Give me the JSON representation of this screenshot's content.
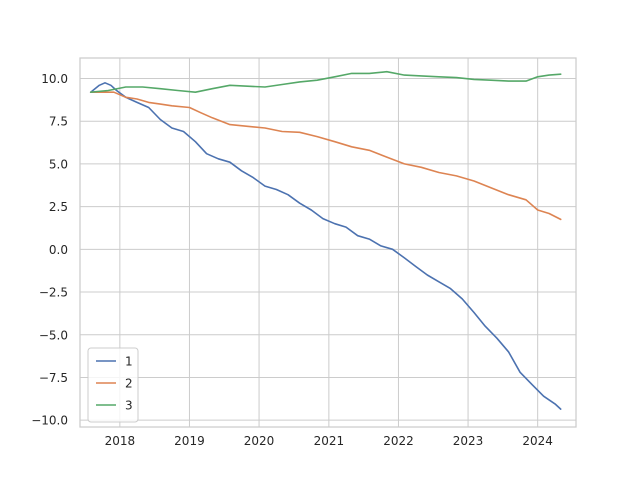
{
  "chart_data": {
    "type": "line",
    "title": "",
    "xlabel": "",
    "ylabel": "",
    "x_ticks": [
      "2018",
      "2019",
      "2020",
      "2021",
      "2022",
      "2023",
      "2024"
    ],
    "y_ticks": [
      "10.0",
      "7.5",
      "5.0",
      "2.5",
      "0.0",
      "−2.5",
      "−5.0",
      "−7.5",
      "−10.0"
    ],
    "xlim": [
      "2017-06-06",
      "2024-07-20"
    ],
    "ylim": [
      -10.4,
      11.2
    ],
    "grid": true,
    "legend_position": "lower-left",
    "series": [
      {
        "name": "1",
        "color": "#4c72b0",
        "points": [
          [
            "2017-08-01",
            9.2
          ],
          [
            "2017-09-15",
            9.6
          ],
          [
            "2017-10-15",
            9.75
          ],
          [
            "2017-11-15",
            9.6
          ],
          [
            "2017-12-15",
            9.3
          ],
          [
            "2018-02-01",
            8.9
          ],
          [
            "2018-04-01",
            8.6
          ],
          [
            "2018-06-01",
            8.3
          ],
          [
            "2018-08-01",
            7.6
          ],
          [
            "2018-10-01",
            7.1
          ],
          [
            "2018-12-01",
            6.9
          ],
          [
            "2019-02-01",
            6.3
          ],
          [
            "2019-04-01",
            5.6
          ],
          [
            "2019-06-01",
            5.3
          ],
          [
            "2019-08-01",
            5.1
          ],
          [
            "2019-10-01",
            4.6
          ],
          [
            "2019-12-01",
            4.2
          ],
          [
            "2020-02-01",
            3.7
          ],
          [
            "2020-04-01",
            3.5
          ],
          [
            "2020-06-01",
            3.2
          ],
          [
            "2020-08-01",
            2.7
          ],
          [
            "2020-10-01",
            2.3
          ],
          [
            "2020-12-01",
            1.8
          ],
          [
            "2021-02-01",
            1.5
          ],
          [
            "2021-04-01",
            1.3
          ],
          [
            "2021-06-01",
            0.8
          ],
          [
            "2021-08-01",
            0.6
          ],
          [
            "2021-10-01",
            0.2
          ],
          [
            "2021-12-01",
            0.0
          ],
          [
            "2022-02-01",
            -0.5
          ],
          [
            "2022-04-01",
            -1.0
          ],
          [
            "2022-06-01",
            -1.5
          ],
          [
            "2022-08-01",
            -1.9
          ],
          [
            "2022-10-01",
            -2.3
          ],
          [
            "2022-12-01",
            -2.9
          ],
          [
            "2023-02-01",
            -3.7
          ],
          [
            "2023-04-01",
            -4.5
          ],
          [
            "2023-06-01",
            -5.2
          ],
          [
            "2023-08-01",
            -6.0
          ],
          [
            "2023-10-01",
            -7.2
          ],
          [
            "2023-12-01",
            -7.9
          ],
          [
            "2024-02-01",
            -8.6
          ],
          [
            "2024-04-01",
            -9.05
          ],
          [
            "2024-05-01",
            -9.35
          ]
        ]
      },
      {
        "name": "2",
        "color": "#dd8452",
        "points": [
          [
            "2017-08-01",
            9.2
          ],
          [
            "2017-10-01",
            9.2
          ],
          [
            "2017-12-01",
            9.2
          ],
          [
            "2018-02-01",
            8.9
          ],
          [
            "2018-04-01",
            8.8
          ],
          [
            "2018-06-01",
            8.6
          ],
          [
            "2018-08-01",
            8.5
          ],
          [
            "2018-10-01",
            8.4
          ],
          [
            "2019-01-01",
            8.3
          ],
          [
            "2019-03-01",
            8.0
          ],
          [
            "2019-05-01",
            7.7
          ],
          [
            "2019-08-01",
            7.3
          ],
          [
            "2019-11-01",
            7.2
          ],
          [
            "2020-02-01",
            7.1
          ],
          [
            "2020-05-01",
            6.9
          ],
          [
            "2020-08-01",
            6.85
          ],
          [
            "2020-11-01",
            6.6
          ],
          [
            "2021-02-01",
            6.3
          ],
          [
            "2021-05-01",
            6.0
          ],
          [
            "2021-08-01",
            5.8
          ],
          [
            "2021-11-01",
            5.4
          ],
          [
            "2022-02-01",
            5.0
          ],
          [
            "2022-05-01",
            4.8
          ],
          [
            "2022-08-01",
            4.5
          ],
          [
            "2022-11-01",
            4.3
          ],
          [
            "2023-02-01",
            4.0
          ],
          [
            "2023-05-01",
            3.6
          ],
          [
            "2023-08-01",
            3.2
          ],
          [
            "2023-11-01",
            2.9
          ],
          [
            "2024-01-01",
            2.3
          ],
          [
            "2024-03-01",
            2.1
          ],
          [
            "2024-05-01",
            1.75
          ]
        ]
      },
      {
        "name": "3",
        "color": "#55a868",
        "points": [
          [
            "2017-08-01",
            9.2
          ],
          [
            "2017-11-01",
            9.3
          ],
          [
            "2018-02-01",
            9.5
          ],
          [
            "2018-05-01",
            9.5
          ],
          [
            "2018-08-01",
            9.4
          ],
          [
            "2018-11-01",
            9.3
          ],
          [
            "2019-02-01",
            9.2
          ],
          [
            "2019-05-01",
            9.4
          ],
          [
            "2019-08-01",
            9.6
          ],
          [
            "2019-11-01",
            9.55
          ],
          [
            "2020-02-01",
            9.5
          ],
          [
            "2020-05-01",
            9.65
          ],
          [
            "2020-08-01",
            9.8
          ],
          [
            "2020-11-01",
            9.9
          ],
          [
            "2021-02-01",
            10.1
          ],
          [
            "2021-05-01",
            10.3
          ],
          [
            "2021-08-01",
            10.3
          ],
          [
            "2021-11-01",
            10.4
          ],
          [
            "2022-02-01",
            10.2
          ],
          [
            "2022-05-01",
            10.15
          ],
          [
            "2022-08-01",
            10.1
          ],
          [
            "2022-11-01",
            10.05
          ],
          [
            "2023-02-01",
            9.95
          ],
          [
            "2023-05-01",
            9.9
          ],
          [
            "2023-08-01",
            9.85
          ],
          [
            "2023-11-01",
            9.85
          ],
          [
            "2024-01-01",
            10.1
          ],
          [
            "2024-03-01",
            10.2
          ],
          [
            "2024-05-01",
            10.25
          ]
        ]
      }
    ]
  }
}
